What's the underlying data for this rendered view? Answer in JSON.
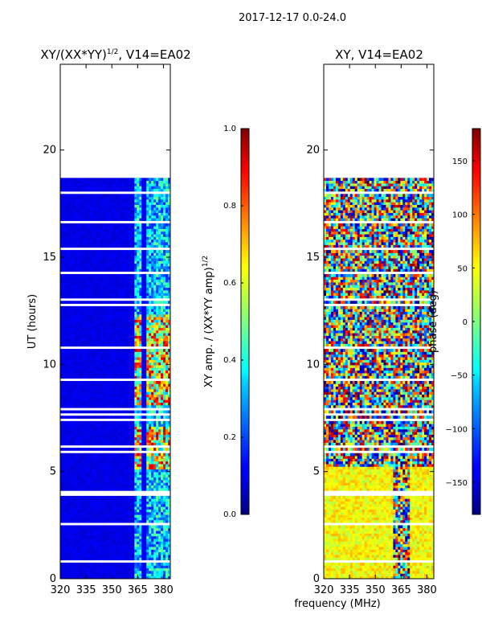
{
  "chart_data": [
    {
      "type": "heatmap",
      "suptitle": "2017-12-17 0.0-24.0",
      "title": "XY/(XX*YY)",
      "title_sup": "1/2",
      "title_suffix": ", V14=EA02",
      "xlabel": "",
      "ylabel": "UT (hours)",
      "xlim": [
        320,
        384
      ],
      "ylim": [
        0,
        24
      ],
      "xticks": [
        320,
        335,
        350,
        365,
        380
      ],
      "yticks": [
        0,
        5,
        10,
        15,
        20
      ],
      "data_extent_hours": [
        0,
        18.7
      ],
      "colorbar": {
        "label": "XY amp. / (XX*YY amp)",
        "label_sup": "1/2",
        "range": [
          0.0,
          1.0
        ],
        "ticks": [
          "0.0",
          "0.2",
          "0.4",
          "0.6",
          "0.8",
          "1.0"
        ],
        "colormap": "jet"
      }
    },
    {
      "type": "heatmap",
      "title": "XY, V14=EA02",
      "xlabel": "frequency (MHz)",
      "ylabel": "",
      "xlim": [
        320,
        384
      ],
      "ylim": [
        0,
        24
      ],
      "xticks": [
        320,
        335,
        350,
        365,
        380
      ],
      "yticks": [
        0,
        5,
        10,
        15,
        20
      ],
      "data_extent_hours": [
        0,
        18.7
      ],
      "colorbar": {
        "label": "phase (deg)",
        "range": [
          -180,
          180
        ],
        "ticks": [
          "150",
          "100",
          "50",
          "0",
          "−50",
          "−100",
          "−150"
        ],
        "tick_values": [
          150,
          100,
          50,
          0,
          -50,
          -100,
          -150
        ],
        "colormap": "jet"
      }
    }
  ],
  "colors": {
    "jet_low": "#00007f",
    "jet_high": "#7f0000",
    "gap": "#ffffff"
  }
}
